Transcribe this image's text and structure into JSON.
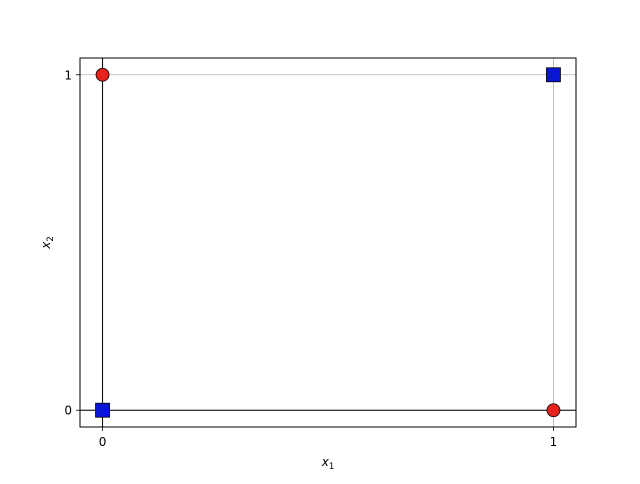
{
  "chart_data": {
    "type": "scatter",
    "title": "",
    "xlabel": {
      "base": "x",
      "sub": "1"
    },
    "ylabel": {
      "base": "x",
      "sub": "2"
    },
    "xlim": [
      -0.05,
      1.05
    ],
    "ylim": [
      -0.05,
      1.05
    ],
    "xticks": [
      0,
      1
    ],
    "yticks": [
      0,
      1
    ],
    "xtick_labels": [
      "0",
      "1"
    ],
    "ytick_labels": [
      "0",
      "1"
    ],
    "grid": true,
    "reference_lines": {
      "x": 0,
      "y": 0
    },
    "series": [
      {
        "marker": "circle",
        "color": "#e8211b",
        "points": [
          {
            "x": 0,
            "y": 1
          },
          {
            "x": 1,
            "y": 0
          }
        ]
      },
      {
        "marker": "square",
        "color": "#0a14d4",
        "points": [
          {
            "x": 0,
            "y": 0
          },
          {
            "x": 1,
            "y": 1
          }
        ]
      }
    ]
  }
}
